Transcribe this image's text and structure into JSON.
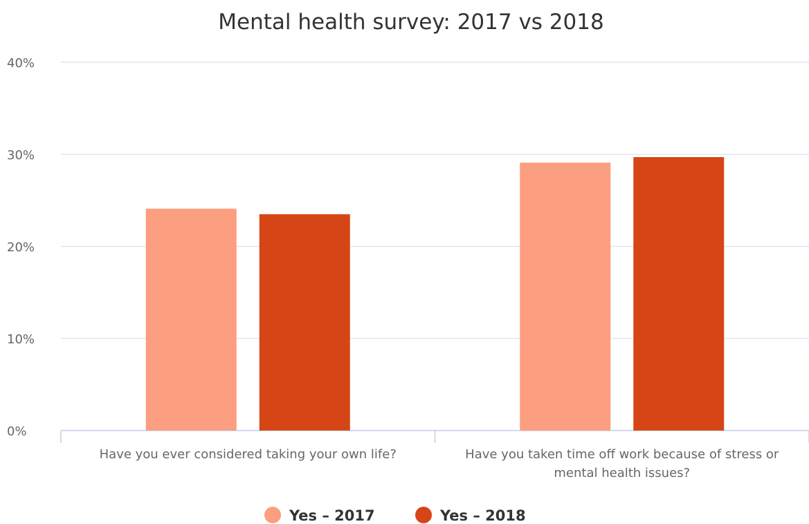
{
  "chart_data": {
    "type": "bar",
    "title": "Mental health survey: 2017 vs 2018",
    "xlabel": "",
    "ylabel": "",
    "ylim": [
      0,
      40
    ],
    "yticks": [
      0,
      10,
      20,
      30,
      40
    ],
    "ytick_labels": [
      "0%",
      "10%",
      "20%",
      "30%",
      "40%"
    ],
    "categories": [
      [
        "Have you ever considered taking your own life?"
      ],
      [
        "Have you taken time off work because of stress or",
        "mental health issues?"
      ]
    ],
    "series": [
      {
        "name": "Yes – 2017",
        "color": "#fc9e80",
        "values": [
          24.1,
          29.1
        ]
      },
      {
        "name": "Yes – 2018",
        "color": "#d64516",
        "values": [
          23.5,
          29.7
        ]
      }
    ],
    "grid": true,
    "legend_position": "bottom-center"
  }
}
